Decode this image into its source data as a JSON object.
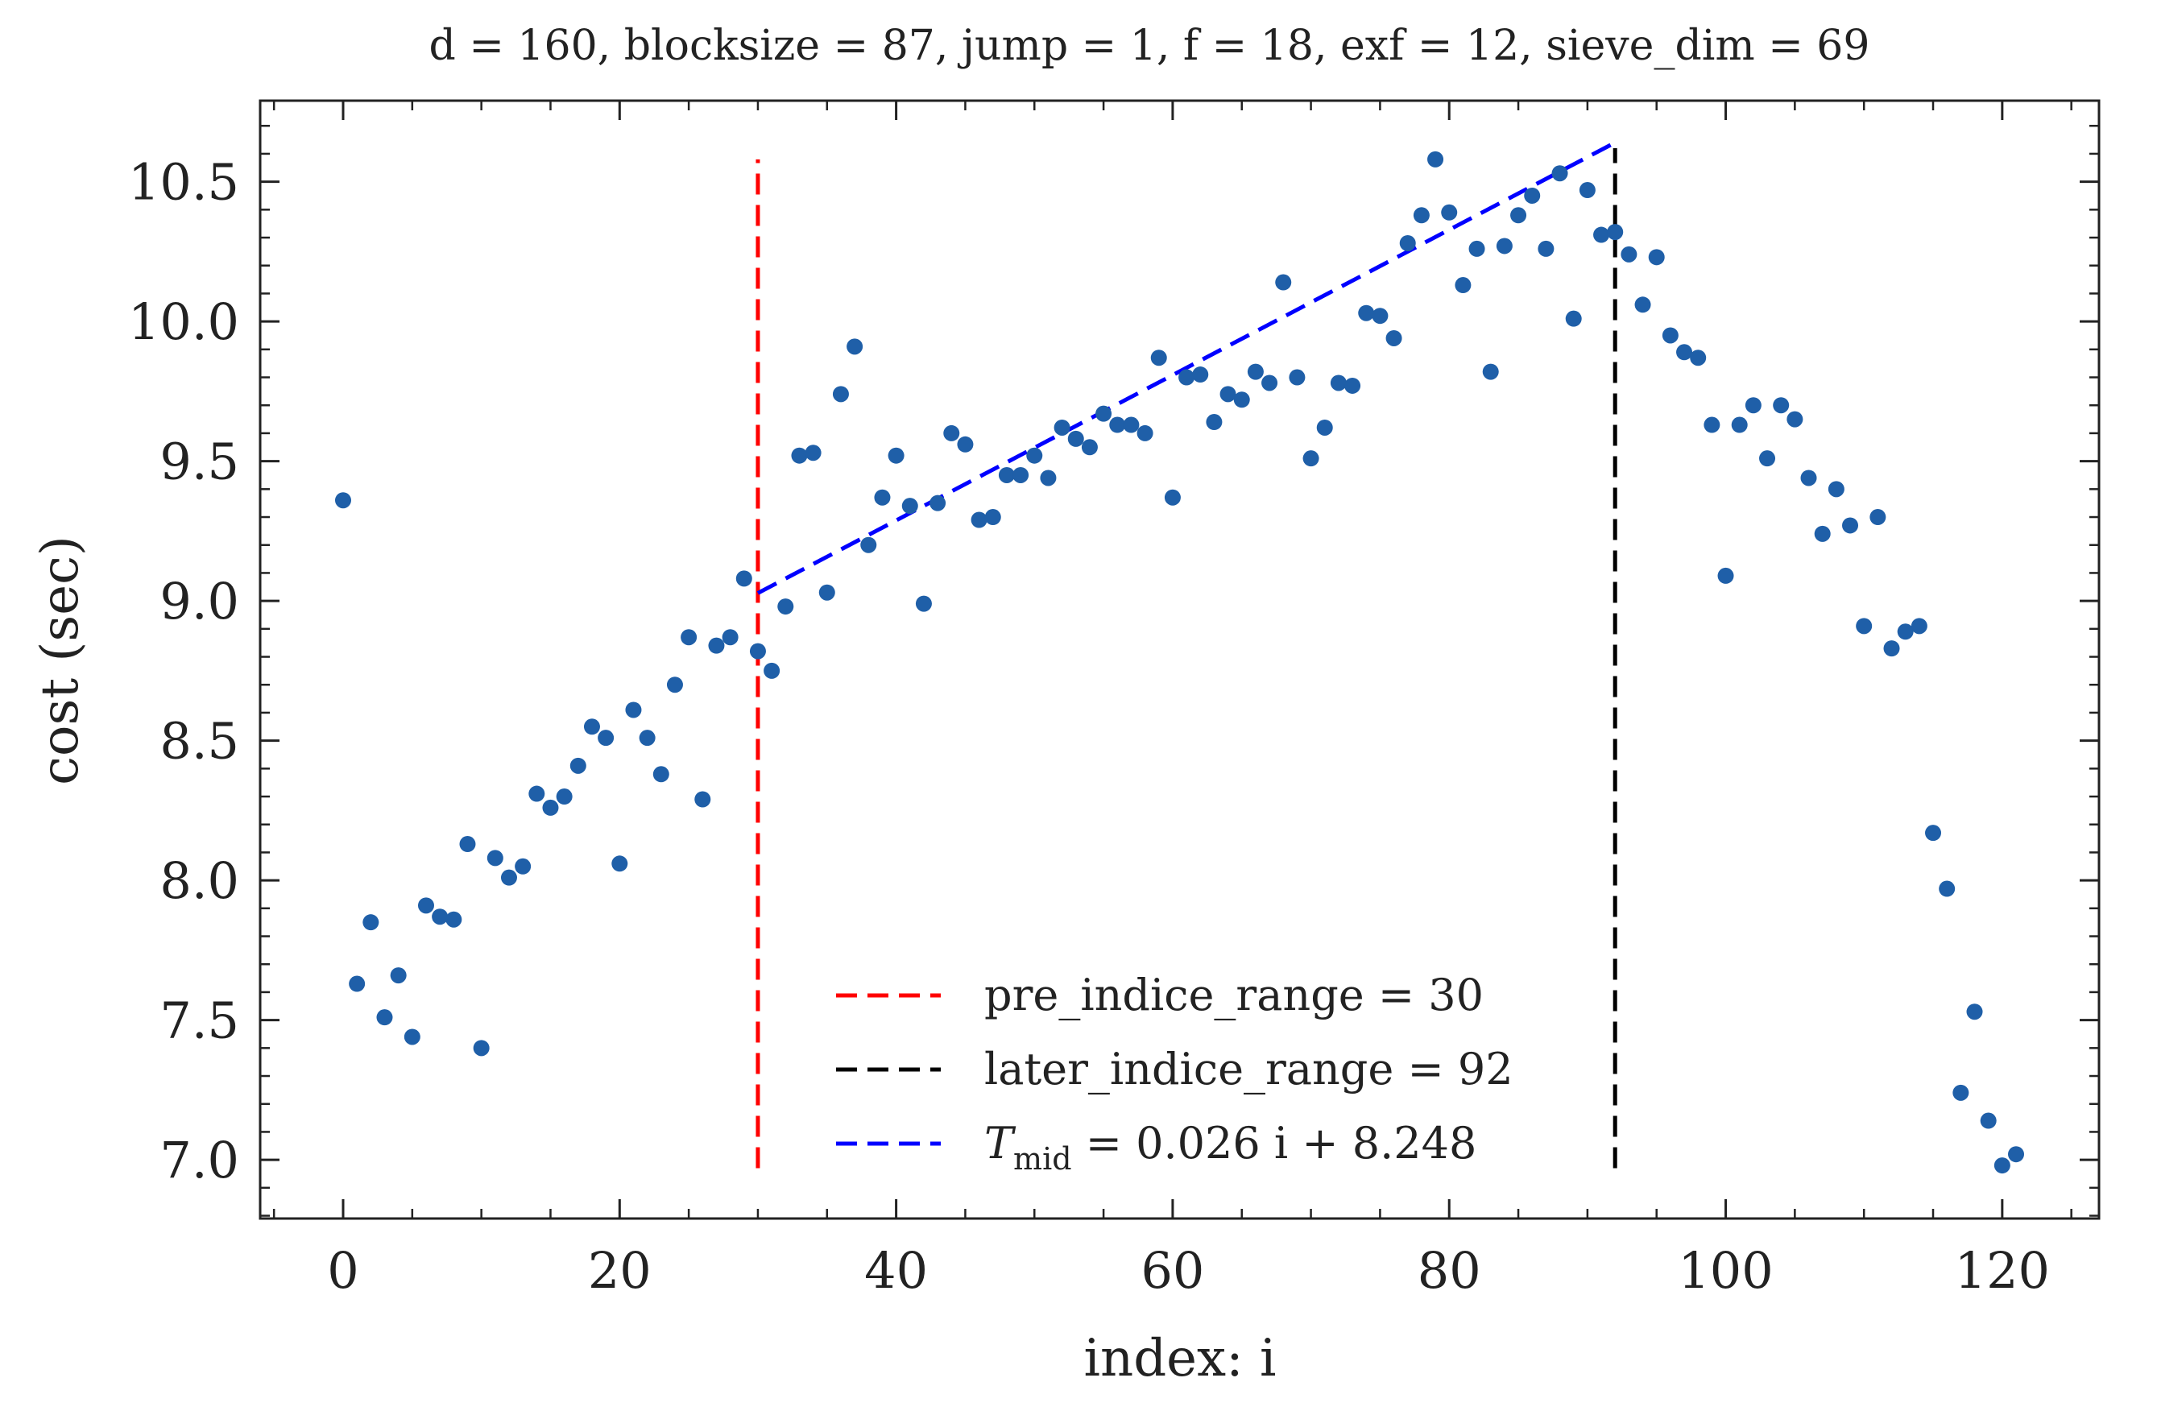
{
  "chart_data": {
    "type": "scatter",
    "title": "d = 160, blocksize = 87, jump = 1, f = 18, exf = 12, sieve_dim = 69",
    "xlabel": "index: i",
    "ylabel": "cost (sec)",
    "xlim": [
      -6,
      127
    ],
    "ylim": [
      6.79,
      10.79
    ],
    "xticks": [
      0,
      20,
      40,
      60,
      80,
      100,
      120
    ],
    "xtick_labels": [
      "0",
      "20",
      "40",
      "60",
      "80",
      "100",
      "120"
    ],
    "yticks": [
      7.0,
      7.5,
      8.0,
      8.5,
      9.0,
      9.5,
      10.0,
      10.5
    ],
    "ytick_labels": [
      "7.0",
      "7.5",
      "8.0",
      "8.5",
      "9.0",
      "9.5",
      "10.0",
      "10.5"
    ],
    "grid": false,
    "legend_position": "bottom-center",
    "point_color": "#1f5fa8",
    "x": [
      0,
      1,
      2,
      3,
      4,
      5,
      6,
      7,
      8,
      9,
      10,
      11,
      12,
      13,
      14,
      15,
      16,
      17,
      18,
      19,
      20,
      21,
      22,
      23,
      24,
      25,
      26,
      27,
      28,
      29,
      30,
      31,
      32,
      33,
      34,
      35,
      36,
      37,
      38,
      39,
      40,
      41,
      42,
      43,
      44,
      45,
      46,
      47,
      48,
      49,
      50,
      51,
      52,
      53,
      54,
      55,
      56,
      57,
      58,
      59,
      60,
      61,
      62,
      63,
      64,
      65,
      66,
      67,
      68,
      69,
      70,
      71,
      72,
      73,
      74,
      75,
      76,
      77,
      78,
      79,
      80,
      81,
      82,
      83,
      84,
      85,
      86,
      87,
      88,
      89,
      90,
      91,
      92,
      93,
      94,
      95,
      96,
      97,
      98,
      99,
      100,
      101,
      102,
      103,
      104,
      105,
      106,
      107,
      108,
      109,
      110,
      111,
      112,
      113,
      114,
      115,
      116,
      117,
      118,
      119,
      120,
      121
    ],
    "y": [
      9.36,
      7.63,
      7.85,
      7.51,
      7.66,
      7.44,
      7.91,
      7.87,
      7.86,
      8.13,
      7.4,
      8.08,
      8.01,
      8.05,
      8.31,
      8.26,
      8.3,
      8.41,
      8.55,
      8.51,
      8.06,
      8.61,
      8.51,
      8.38,
      8.7,
      8.87,
      8.29,
      8.84,
      8.87,
      9.08,
      8.82,
      8.75,
      8.98,
      9.52,
      9.53,
      9.03,
      9.74,
      9.91,
      9.2,
      9.37,
      9.52,
      9.34,
      8.99,
      9.35,
      9.6,
      9.56,
      9.29,
      9.3,
      9.45,
      9.45,
      9.52,
      9.44,
      9.62,
      9.58,
      9.55,
      9.67,
      9.63,
      9.63,
      9.6,
      9.87,
      9.37,
      9.8,
      9.81,
      9.64,
      9.74,
      9.72,
      9.82,
      9.78,
      10.14,
      9.8,
      9.51,
      9.62,
      9.78,
      9.77,
      10.03,
      10.02,
      9.94,
      10.28,
      10.38,
      10.58,
      10.39,
      10.13,
      10.26,
      9.82,
      10.27,
      10.38,
      10.45,
      10.26,
      10.53,
      10.01,
      10.47,
      10.31,
      10.32,
      10.24,
      10.06,
      10.23,
      9.95,
      9.89,
      9.87,
      9.63,
      9.09,
      9.63,
      9.7,
      9.51,
      9.7,
      9.65,
      9.44,
      9.24,
      9.4,
      9.27,
      8.91,
      9.3,
      8.83,
      8.89,
      8.91,
      8.17,
      7.97,
      7.24,
      7.53,
      7.14,
      6.98,
      7.02
    ],
    "lines": [
      {
        "label": "pre_indice_range = 30",
        "kind": "vline",
        "x": 30,
        "y_range": [
          6.97,
          10.58
        ],
        "color": "#ff0000",
        "dash": "dashed"
      },
      {
        "label": "later_indice_range = 92",
        "kind": "vline",
        "x": 92,
        "y_range": [
          6.97,
          10.62
        ],
        "color": "#000000",
        "dash": "dashed"
      },
      {
        "label_main": "T",
        "label_sub": "mid",
        "label_rest": " = 0.026 i + 8.248",
        "kind": "fit",
        "slope": 0.026,
        "intercept": 8.248,
        "x_range": [
          30,
          92
        ],
        "color": "#0000ff",
        "dash": "dashed"
      }
    ]
  }
}
